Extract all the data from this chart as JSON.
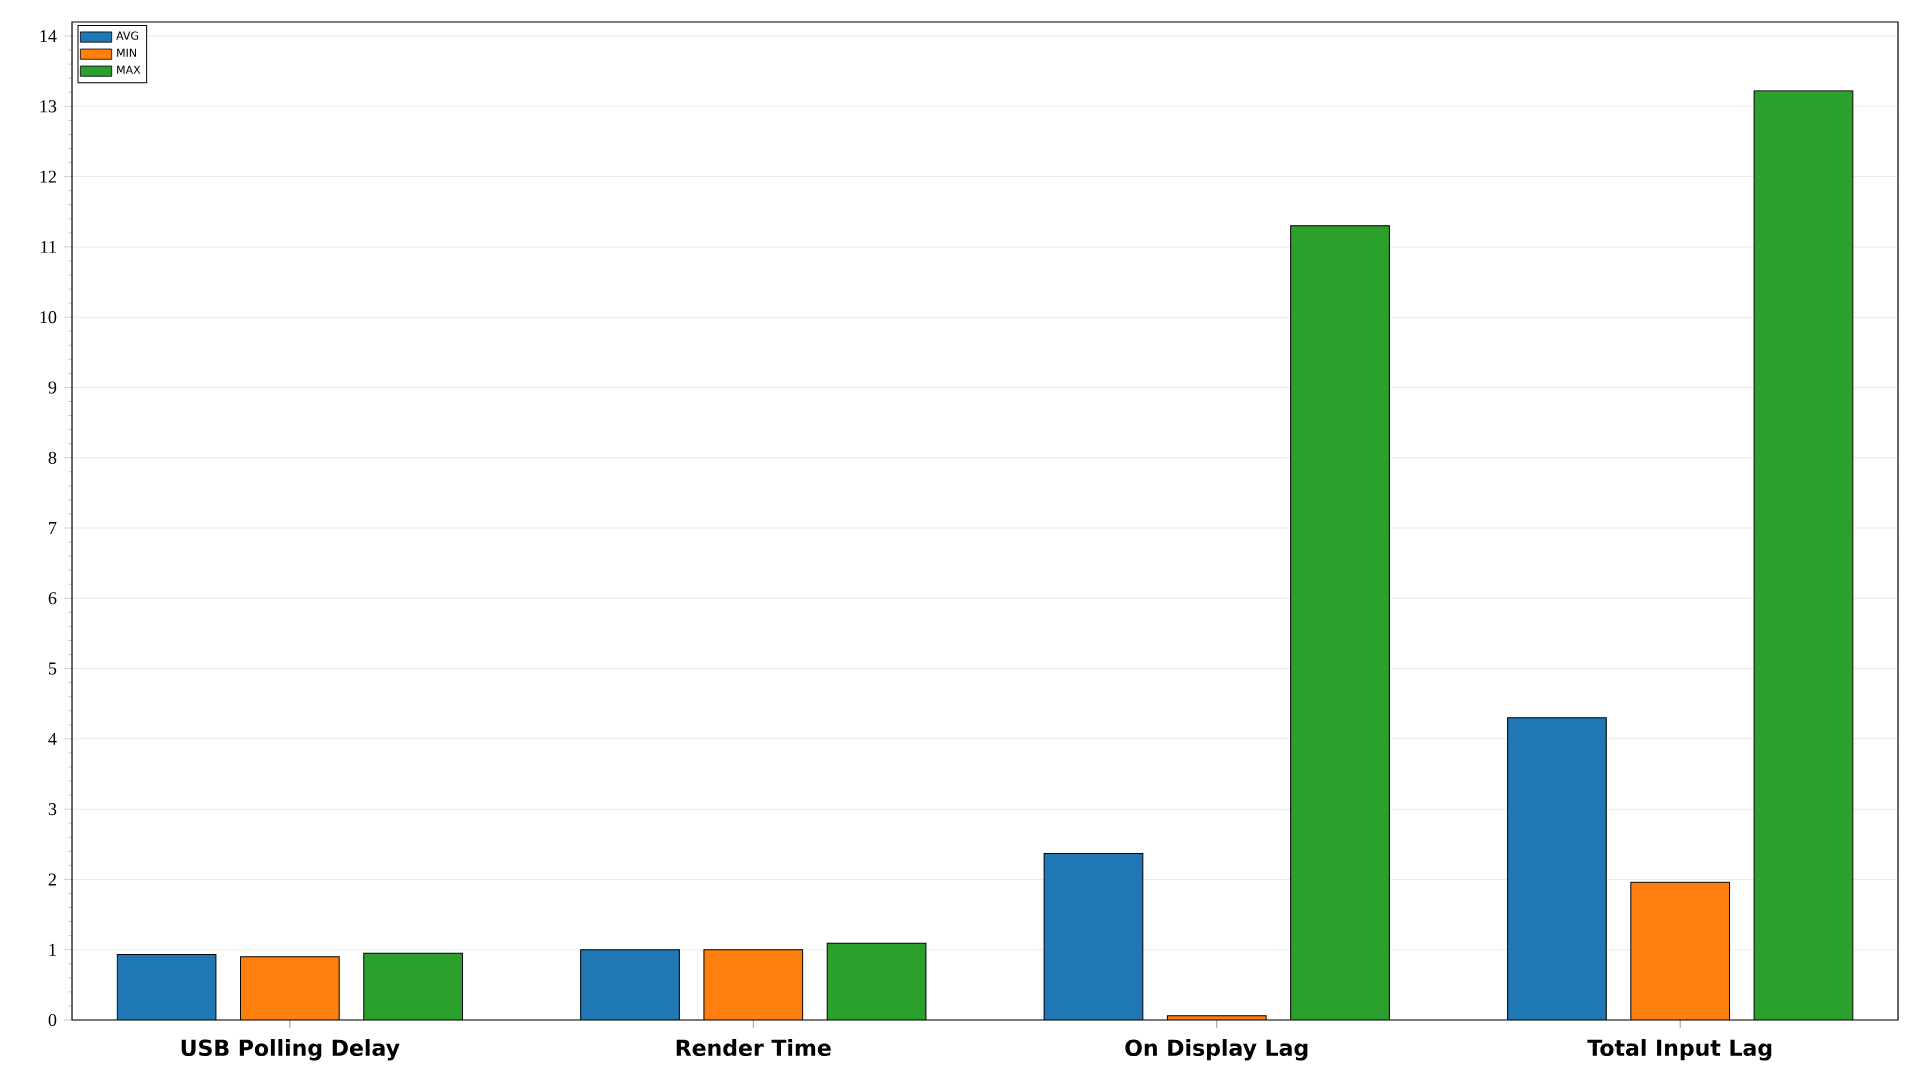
{
  "chart_data": {
    "type": "bar",
    "categories": [
      "USB Polling Delay",
      "Render Time",
      "On Display Lag",
      "Total Input Lag"
    ],
    "series": [
      {
        "name": "AVG",
        "color": "#1f77b4",
        "values": [
          0.93,
          1.0,
          2.37,
          4.3
        ]
      },
      {
        "name": "MIN",
        "color": "#ff7f0e",
        "values": [
          0.9,
          1.0,
          0.06,
          1.96
        ]
      },
      {
        "name": "MAX",
        "color": "#2ca02c",
        "values": [
          0.95,
          1.09,
          11.3,
          13.22
        ]
      }
    ],
    "ylim": [
      0,
      14.2
    ],
    "yticks": [
      0,
      1,
      2,
      3,
      4,
      5,
      6,
      7,
      8,
      9,
      10,
      11,
      12,
      13,
      14
    ],
    "grid": "y",
    "legend": "top left"
  }
}
